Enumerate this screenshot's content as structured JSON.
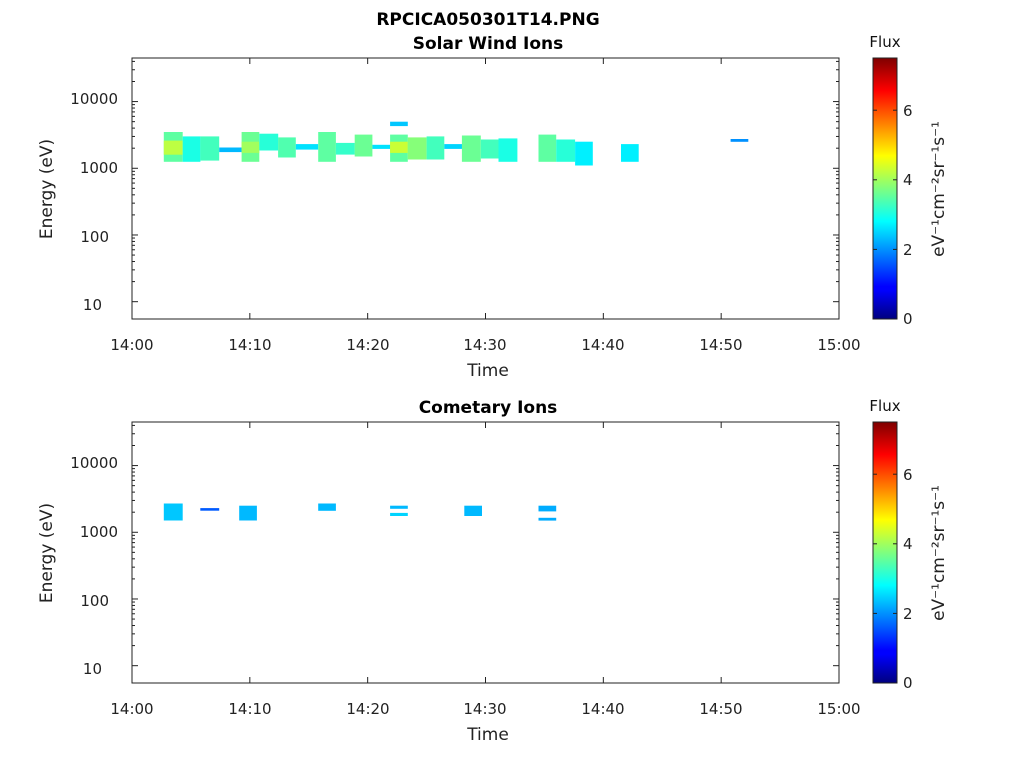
{
  "figure_title": "RPCICA050301T14.PNG",
  "chart_data": [
    {
      "type": "heatmap",
      "title": "Solar Wind Ions",
      "xlabel": "Time",
      "ylabel": "Energy (eV)",
      "xlim": [
        "14:00",
        "15:00"
      ],
      "x_ticks": [
        "14:00",
        "14:10",
        "14:20",
        "14:30",
        "14:40",
        "14:50",
        "15:00"
      ],
      "y_scale": "log",
      "ylim": [
        5.5,
        45000
      ],
      "y_ticks": [
        10,
        100,
        1000,
        10000
      ],
      "y_tick_labels": [
        "10",
        "100",
        "1000",
        "10000"
      ],
      "colorbar": {
        "title": "Flux",
        "label": "eV⁻¹cm⁻²sr⁻¹s⁻¹",
        "range": [
          0,
          7.5
        ],
        "ticks": [
          "0",
          "2",
          "4",
          "6"
        ]
      },
      "cells": [
        {
          "t0": 2.7,
          "t1": 4.3,
          "e0": 1250,
          "e1": 3500,
          "flux": 3.5
        },
        {
          "t0": 2.7,
          "t1": 4.3,
          "e0": 1600,
          "e1": 2600,
          "flux": 4.2
        },
        {
          "t0": 4.3,
          "t1": 5.8,
          "e0": 1250,
          "e1": 3000,
          "flux": 3.0
        },
        {
          "t0": 5.8,
          "t1": 7.4,
          "e0": 1300,
          "e1": 3000,
          "flux": 3.3
        },
        {
          "t0": 7.4,
          "t1": 9.3,
          "e0": 1750,
          "e1": 2050,
          "flux": 2.3
        },
        {
          "t0": 9.3,
          "t1": 10.8,
          "e0": 1250,
          "e1": 3500,
          "flux": 3.6
        },
        {
          "t0": 9.3,
          "t1": 10.8,
          "e0": 1700,
          "e1": 2500,
          "flux": 4.0
        },
        {
          "t0": 10.8,
          "t1": 12.4,
          "e0": 1850,
          "e1": 3300,
          "flux": 3.1
        },
        {
          "t0": 12.4,
          "t1": 13.9,
          "e0": 1450,
          "e1": 2900,
          "flux": 3.4
        },
        {
          "t0": 13.9,
          "t1": 15.8,
          "e0": 1900,
          "e1": 2300,
          "flux": 2.6
        },
        {
          "t0": 15.8,
          "t1": 17.3,
          "e0": 1250,
          "e1": 3500,
          "flux": 3.5
        },
        {
          "t0": 17.3,
          "t1": 18.9,
          "e0": 1600,
          "e1": 2400,
          "flux": 3.2
        },
        {
          "t0": 18.9,
          "t1": 20.4,
          "e0": 1500,
          "e1": 3200,
          "flux": 3.6
        },
        {
          "t0": 20.4,
          "t1": 21.9,
          "e0": 1950,
          "e1": 2250,
          "flux": 2.6
        },
        {
          "t0": 21.9,
          "t1": 23.4,
          "e0": 4300,
          "e1": 5000,
          "flux": 2.4
        },
        {
          "t0": 21.9,
          "t1": 23.4,
          "e0": 1250,
          "e1": 3200,
          "flux": 3.5
        },
        {
          "t0": 21.9,
          "t1": 23.4,
          "e0": 1700,
          "e1": 2500,
          "flux": 4.3
        },
        {
          "t0": 23.4,
          "t1": 25.0,
          "e0": 1350,
          "e1": 2900,
          "flux": 3.8
        },
        {
          "t0": 25.0,
          "t1": 26.5,
          "e0": 1350,
          "e1": 3000,
          "flux": 3.3
        },
        {
          "t0": 26.5,
          "t1": 28.0,
          "e0": 1950,
          "e1": 2300,
          "flux": 2.5
        },
        {
          "t0": 28.0,
          "t1": 29.6,
          "e0": 1250,
          "e1": 3100,
          "flux": 3.6
        },
        {
          "t0": 29.6,
          "t1": 31.1,
          "e0": 1400,
          "e1": 2700,
          "flux": 3.3
        },
        {
          "t0": 31.1,
          "t1": 32.7,
          "e0": 1250,
          "e1": 2800,
          "flux": 3.0
        },
        {
          "t0": 34.5,
          "t1": 36.0,
          "e0": 1250,
          "e1": 3200,
          "flux": 3.5
        },
        {
          "t0": 36.0,
          "t1": 37.6,
          "e0": 1250,
          "e1": 2700,
          "flux": 3.1
        },
        {
          "t0": 37.6,
          "t1": 39.1,
          "e0": 1100,
          "e1": 2500,
          "flux": 2.7
        },
        {
          "t0": 41.5,
          "t1": 43.0,
          "e0": 1250,
          "e1": 2300,
          "flux": 2.7
        },
        {
          "t0": 50.8,
          "t1": 52.3,
          "e0": 2500,
          "e1": 2750,
          "flux": 2.0
        }
      ]
    },
    {
      "type": "heatmap",
      "title": "Cometary Ions",
      "xlabel": "Time",
      "ylabel": "Energy (eV)",
      "xlim": [
        "14:00",
        "15:00"
      ],
      "x_ticks": [
        "14:00",
        "14:10",
        "14:20",
        "14:30",
        "14:40",
        "14:50",
        "15:00"
      ],
      "y_scale": "log",
      "ylim": [
        5.5,
        45000
      ],
      "y_ticks": [
        10,
        100,
        1000,
        10000
      ],
      "y_tick_labels": [
        "10",
        "100",
        "1000",
        "10000"
      ],
      "colorbar": {
        "title": "Flux",
        "label": "eV⁻¹cm⁻²sr⁻¹s⁻¹",
        "range": [
          0,
          7.5
        ],
        "ticks": [
          "0",
          "2",
          "4",
          "6"
        ]
      },
      "cells": [
        {
          "t0": 2.7,
          "t1": 4.3,
          "e0": 1500,
          "e1": 2700,
          "flux": 2.4
        },
        {
          "t0": 5.8,
          "t1": 7.4,
          "e0": 2100,
          "e1": 2300,
          "flux": 1.6
        },
        {
          "t0": 9.1,
          "t1": 10.6,
          "e0": 1500,
          "e1": 2500,
          "flux": 2.3
        },
        {
          "t0": 15.8,
          "t1": 17.3,
          "e0": 2100,
          "e1": 2700,
          "flux": 2.3
        },
        {
          "t0": 21.9,
          "t1": 23.4,
          "e0": 2250,
          "e1": 2500,
          "flux": 2.3
        },
        {
          "t0": 21.9,
          "t1": 23.4,
          "e0": 1750,
          "e1": 1950,
          "flux": 2.5
        },
        {
          "t0": 28.2,
          "t1": 29.7,
          "e0": 1750,
          "e1": 2500,
          "flux": 2.3
        },
        {
          "t0": 34.5,
          "t1": 36.0,
          "e0": 2050,
          "e1": 2500,
          "flux": 2.2
        },
        {
          "t0": 34.5,
          "t1": 36.0,
          "e0": 1500,
          "e1": 1650,
          "flux": 2.2
        }
      ]
    }
  ]
}
